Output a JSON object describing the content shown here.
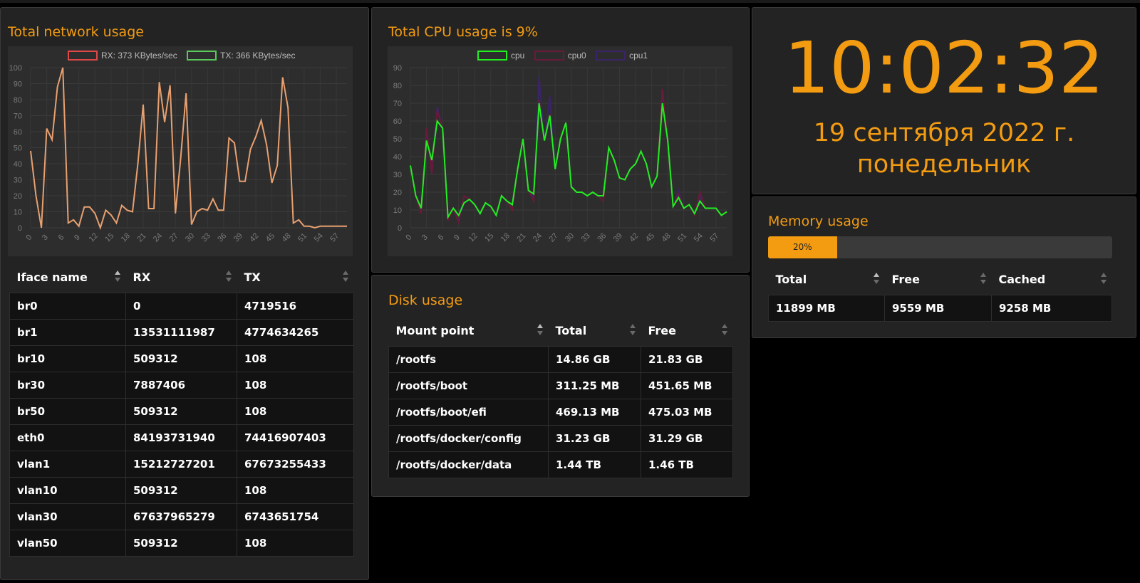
{
  "network": {
    "title": "Total network usage",
    "table": {
      "headers": [
        "Iface name",
        "RX",
        "TX"
      ],
      "rows": [
        [
          "br0",
          "0",
          "4719516"
        ],
        [
          "br1",
          "13531111987",
          "4774634265"
        ],
        [
          "br10",
          "509312",
          "108"
        ],
        [
          "br30",
          "7887406",
          "108"
        ],
        [
          "br50",
          "509312",
          "108"
        ],
        [
          "eth0",
          "84193731940",
          "74416907403"
        ],
        [
          "vlan1",
          "15212727201",
          "67673255433"
        ],
        [
          "vlan10",
          "509312",
          "108"
        ],
        [
          "vlan30",
          "67637965279",
          "6743651754"
        ],
        [
          "vlan50",
          "509312",
          "108"
        ]
      ]
    }
  },
  "cpu": {
    "title": "Total CPU usage is 9%"
  },
  "disk": {
    "title": "Disk usage",
    "table": {
      "headers": [
        "Mount point",
        "Total",
        "Free"
      ],
      "rows": [
        [
          "/rootfs",
          "14.86 GB",
          "21.83 GB"
        ],
        [
          "/rootfs/boot",
          "311.25 MB",
          "451.65 MB"
        ],
        [
          "/rootfs/boot/efi",
          "469.13 MB",
          "475.03 MB"
        ],
        [
          "/rootfs/docker/config",
          "31.23 GB",
          "31.29 GB"
        ],
        [
          "/rootfs/docker/data",
          "1.44 TB",
          "1.46 TB"
        ]
      ]
    }
  },
  "clock": {
    "time": "10:02:32",
    "date": "19 сентября 2022 г.",
    "weekday": "понедельник"
  },
  "memory": {
    "title": "Memory usage",
    "percent": 20,
    "percent_label": "20%",
    "table": {
      "headers": [
        "Total",
        "Free",
        "Cached"
      ],
      "rows": [
        [
          "11899 MB",
          "9559 MB",
          "9258 MB"
        ]
      ]
    }
  },
  "colors": {
    "accent": "#f39c12",
    "rx": "#e04848",
    "tx": "#5ac85a",
    "net_line": "#e8a070",
    "cpu": "#22ee22",
    "cpu0": "#6a1a3a",
    "cpu1": "#3a2468"
  },
  "chart_data": [
    {
      "type": "line",
      "legend": [
        "RX: 373 KBytes/sec",
        "TX: 366 KBytes/sec"
      ],
      "x": [
        0,
        1,
        2,
        3,
        4,
        5,
        6,
        7,
        8,
        9,
        10,
        11,
        12,
        13,
        14,
        15,
        16,
        17,
        18,
        19,
        20,
        21,
        22,
        23,
        24,
        25,
        26,
        27,
        28,
        29,
        30,
        31,
        32,
        33,
        34,
        35,
        36,
        37,
        38,
        39,
        40,
        41,
        42,
        43,
        44,
        45,
        46,
        47,
        48,
        49,
        50,
        51,
        52,
        53,
        54,
        55,
        56,
        57,
        58,
        59
      ],
      "xticks": [
        "0",
        "3",
        "6",
        "9",
        "12",
        "15",
        "18",
        "21",
        "24",
        "27",
        "30",
        "33",
        "36",
        "39",
        "42",
        "45",
        "48",
        "51",
        "54",
        "57"
      ],
      "yticks": [
        "0",
        "10",
        "20",
        "30",
        "40",
        "50",
        "60",
        "70",
        "80",
        "90",
        "100"
      ],
      "ylim": [
        0,
        100
      ],
      "series": [
        {
          "values": [
            48,
            20,
            0,
            62,
            55,
            88,
            100,
            3,
            5,
            1,
            13,
            13,
            9,
            0,
            11,
            8,
            3,
            14,
            11,
            10,
            40,
            77,
            12,
            12,
            91,
            66,
            89,
            9,
            44,
            84,
            2,
            10,
            12,
            11,
            18,
            11,
            11,
            56,
            53,
            29,
            29,
            49,
            57,
            67,
            52,
            28,
            39,
            94,
            75,
            3,
            5,
            1,
            1,
            0,
            1,
            1,
            1,
            1,
            1,
            1
          ]
        }
      ]
    },
    {
      "type": "line",
      "legend": [
        "cpu",
        "cpu0",
        "cpu1"
      ],
      "x": [
        0,
        1,
        2,
        3,
        4,
        5,
        6,
        7,
        8,
        9,
        10,
        11,
        12,
        13,
        14,
        15,
        16,
        17,
        18,
        19,
        20,
        21,
        22,
        23,
        24,
        25,
        26,
        27,
        28,
        29,
        30,
        31,
        32,
        33,
        34,
        35,
        36,
        37,
        38,
        39,
        40,
        41,
        42,
        43,
        44,
        45,
        46,
        47,
        48,
        49,
        50,
        51,
        52,
        53,
        54,
        55,
        56,
        57,
        58,
        59
      ],
      "xticks": [
        "0",
        "3",
        "6",
        "9",
        "12",
        "15",
        "18",
        "21",
        "24",
        "27",
        "30",
        "33",
        "36",
        "39",
        "42",
        "45",
        "48",
        "51",
        "54",
        "57"
      ],
      "yticks": [
        "0",
        "10",
        "20",
        "30",
        "40",
        "50",
        "60",
        "70",
        "80",
        "90"
      ],
      "ylim": [
        0,
        90
      ],
      "series": [
        {
          "name": "cpu",
          "values": [
            35,
            18,
            11,
            49,
            38,
            60,
            56,
            6,
            11,
            7,
            14,
            16,
            13,
            8,
            14,
            12,
            7,
            18,
            15,
            13,
            33,
            50,
            21,
            19,
            70,
            49,
            63,
            33,
            50,
            59,
            23,
            20,
            20,
            18,
            20,
            18,
            18,
            45,
            38,
            28,
            27,
            33,
            36,
            43,
            36,
            23,
            29,
            70,
            49,
            12,
            17,
            11,
            13,
            8,
            15,
            11,
            11,
            11,
            7,
            9
          ]
        },
        {
          "name": "cpu0",
          "values": [
            35,
            18,
            8,
            56,
            30,
            66,
            56,
            4,
            11,
            3,
            18,
            16,
            13,
            8,
            14,
            12,
            7,
            18,
            15,
            10,
            33,
            50,
            21,
            15,
            72,
            49,
            64,
            33,
            50,
            59,
            23,
            20,
            20,
            18,
            20,
            18,
            15,
            45,
            38,
            28,
            27,
            33,
            36,
            43,
            36,
            23,
            29,
            78,
            49,
            12,
            19,
            11,
            13,
            7,
            20,
            11,
            11,
            11,
            7,
            9
          ]
        },
        {
          "name": "cpu1",
          "values": [
            35,
            18,
            10,
            52,
            33,
            68,
            56,
            6,
            11,
            4,
            14,
            16,
            13,
            8,
            14,
            12,
            7,
            18,
            15,
            13,
            33,
            50,
            21,
            17,
            85,
            49,
            74,
            33,
            50,
            59,
            23,
            20,
            20,
            18,
            20,
            18,
            18,
            45,
            38,
            28,
            27,
            33,
            36,
            43,
            36,
            23,
            29,
            76,
            49,
            12,
            21,
            11,
            13,
            8,
            18,
            11,
            11,
            11,
            7,
            9
          ]
        }
      ]
    }
  ]
}
